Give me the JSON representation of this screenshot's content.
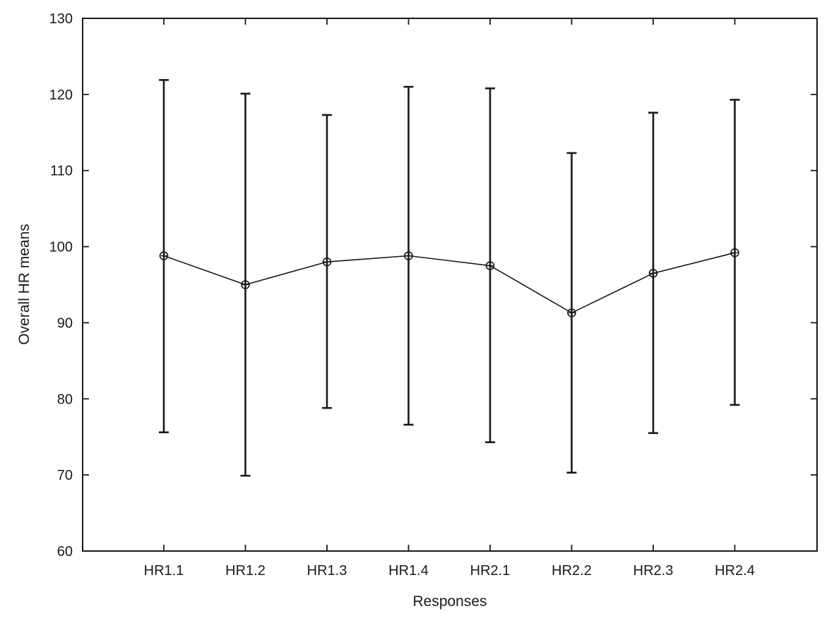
{
  "chart_data": {
    "type": "line",
    "title": "",
    "xlabel": "Responses",
    "ylabel": "Overall HR means",
    "categories": [
      "HR1.1",
      "HR1.2",
      "HR1.3",
      "HR1.4",
      "HR2.1",
      "HR2.2",
      "HR2.3",
      "HR2.4"
    ],
    "series": [
      {
        "values": [
          98.8,
          95.0,
          98.0,
          98.8,
          97.5,
          91.3,
          96.5,
          99.2
        ],
        "error_upper": [
          121.9,
          120.1,
          117.3,
          121.0,
          120.8,
          112.3,
          117.6,
          119.3
        ],
        "error_lower": [
          75.6,
          69.9,
          78.8,
          76.6,
          74.3,
          70.3,
          75.5,
          79.2
        ]
      }
    ],
    "ylim": [
      60,
      130
    ],
    "yticks": [
      60,
      70,
      80,
      90,
      100,
      110,
      120,
      130
    ],
    "grid": false,
    "legend": "none",
    "marker": "circle-with-cross",
    "colors": {
      "line": "#1a1a1a",
      "background": "#ffffff"
    }
  }
}
